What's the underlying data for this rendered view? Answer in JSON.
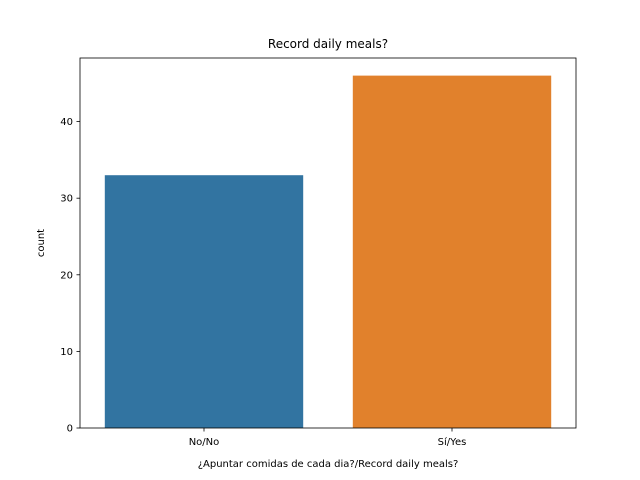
{
  "chart_data": {
    "type": "bar",
    "title": "Record daily meals?",
    "xlabel": "¿Apuntar comidas de cada dia?/Record daily meals?",
    "ylabel": "count",
    "categories": [
      "No/No",
      "Sí/Yes"
    ],
    "values": [
      33,
      46
    ],
    "colors": [
      "#3274a1",
      "#e1812c"
    ],
    "ylim": [
      0,
      48.3
    ],
    "yticks": [
      0,
      10,
      20,
      30,
      40
    ],
    "grid": false,
    "legend": "none"
  }
}
